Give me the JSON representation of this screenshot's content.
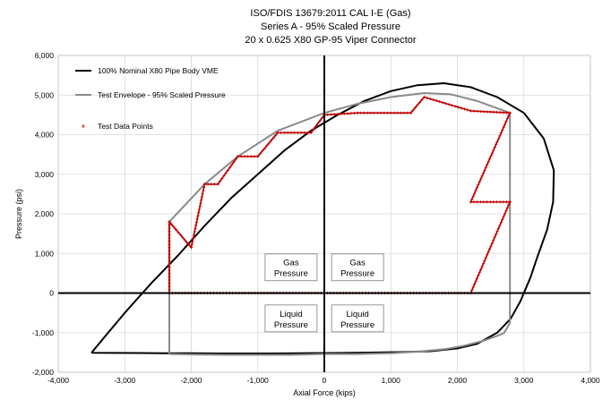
{
  "chart_data": {
    "type": "line",
    "title": [
      "ISO/FDIS 13679:2011 CAL I-E (Gas)",
      "Series A - 95% Scaled Pressure",
      "20 x 0.625 X80 GP-95 Viper Connector"
    ],
    "xlabel": "Axial Force (kips)",
    "ylabel": "Pressure (psi)",
    "xlim": [
      -4000,
      4000
    ],
    "ylim": [
      -2000,
      6000
    ],
    "x_ticks": [
      "-4,000",
      "-3,000",
      "-2,000",
      "-1,000",
      "0",
      "1,000",
      "2,000",
      "3,000",
      "4,000"
    ],
    "y_ticks": [
      "-2,000",
      "-1,000",
      "0",
      "1,000",
      "2,000",
      "3,000",
      "4,000",
      "5,000",
      "6,000"
    ],
    "grid": true,
    "legend_position": "top-left",
    "region_labels": [
      {
        "text": [
          "Gas",
          "Pressure"
        ],
        "x": -500,
        "y": 650
      },
      {
        "text": [
          "Gas",
          "Pressure"
        ],
        "x": 500,
        "y": 650
      },
      {
        "text": [
          "Liquid",
          "Pressure"
        ],
        "x": -500,
        "y": -640
      },
      {
        "text": [
          "Liquid",
          "Pressure"
        ],
        "x": 500,
        "y": -640
      }
    ],
    "series": [
      {
        "name": "100% Nominal X80 Pipe Body VME",
        "color": "#000000",
        "style": "line",
        "x": [
          -3500,
          -3300,
          -3000,
          -2600,
          -2200,
          -1800,
          -1400,
          -1000,
          -600,
          -200,
          200,
          600,
          1000,
          1400,
          1800,
          2200,
          2600,
          3000,
          3300,
          3450,
          3440,
          3350,
          3200,
          3100,
          2950,
          2800,
          2600,
          2300,
          2000,
          1600,
          1200,
          800,
          400,
          0,
          -400,
          -800,
          -1200,
          -1600,
          -2000,
          -2400,
          -2800,
          -3200,
          -3500
        ],
        "y": [
          -1510,
          -1100,
          -500,
          250,
          950,
          1700,
          2400,
          3000,
          3600,
          4100,
          4500,
          4850,
          5100,
          5250,
          5300,
          5200,
          4950,
          4550,
          3900,
          3100,
          2300,
          1600,
          900,
          400,
          -200,
          -650,
          -1000,
          -1280,
          -1400,
          -1470,
          -1490,
          -1500,
          -1510,
          -1515,
          -1520,
          -1525,
          -1525,
          -1525,
          -1522,
          -1518,
          -1515,
          -1512,
          -1510
        ]
      },
      {
        "name": "Test Envelope - 95% Scaled Pressure",
        "color": "#8a8a8a",
        "style": "line",
        "x": [
          -2330,
          -2330,
          -1800,
          -1300,
          -700,
          0,
          500,
          1000,
          1500,
          1900,
          2300,
          2790,
          2790,
          2700,
          2600,
          2400,
          2100,
          1800,
          1400,
          1000,
          500,
          0,
          -500,
          -1000,
          -1500,
          -2000,
          -2330,
          -2330
        ],
        "y": [
          0,
          1800,
          2750,
          3450,
          4100,
          4550,
          4780,
          4950,
          5050,
          5020,
          4850,
          4550,
          -760,
          -1010,
          -1080,
          -1200,
          -1330,
          -1420,
          -1480,
          -1520,
          -1540,
          -1540,
          -1560,
          -1560,
          -1560,
          -1550,
          -1540,
          0
        ]
      },
      {
        "name": "Test Data Points",
        "color": "#c00000",
        "style": "markers",
        "x": [
          -2330,
          -2330,
          -2000,
          -1800,
          -1600,
          -1300,
          -1000,
          -700,
          -200,
          0,
          500,
          1300,
          1500,
          2200,
          2790,
          2200,
          2790,
          2200,
          0,
          -2330
        ],
        "y": [
          0,
          1800,
          1150,
          2750,
          2750,
          3450,
          3450,
          4050,
          4050,
          4500,
          4550,
          4550,
          4950,
          4600,
          4550,
          2300,
          2300,
          0,
          0,
          0
        ]
      }
    ]
  }
}
